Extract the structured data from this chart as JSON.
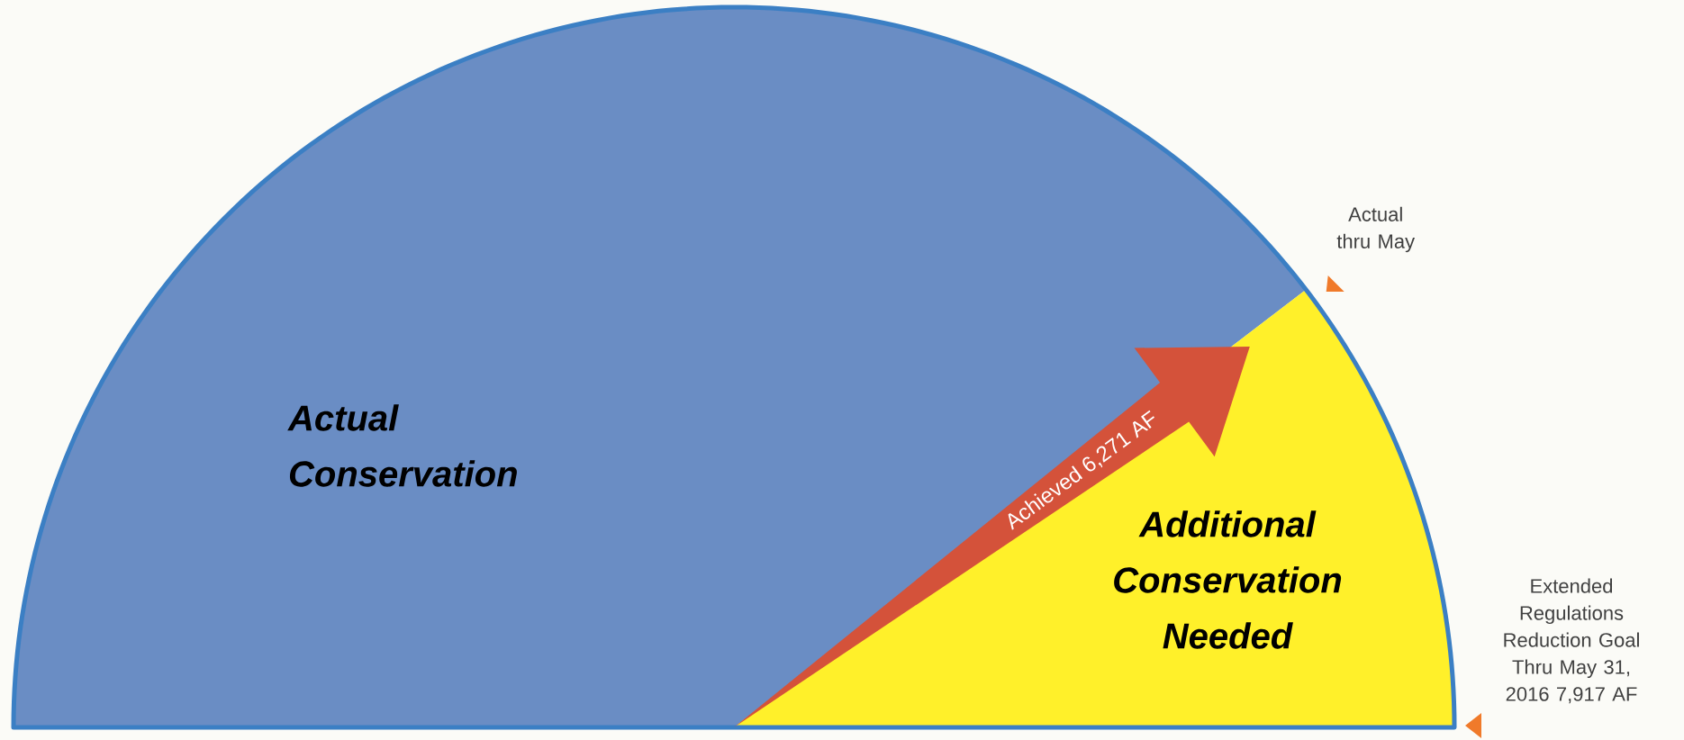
{
  "chart_data": {
    "type": "pie",
    "categories": [
      "Actual Conservation",
      "Additional Conservation Needed"
    ],
    "values": [
      79.2,
      20.8
    ],
    "colors": [
      "#6a8dc4",
      "#fff02a"
    ],
    "needle": "Additional Conservation Needed",
    "annotations": [
      "Achieved 6,271 AF",
      "Actual thru May",
      "Extended Regulations Reduction Goal Thru May 31, 2016 7,917 AF"
    ]
  }
}
